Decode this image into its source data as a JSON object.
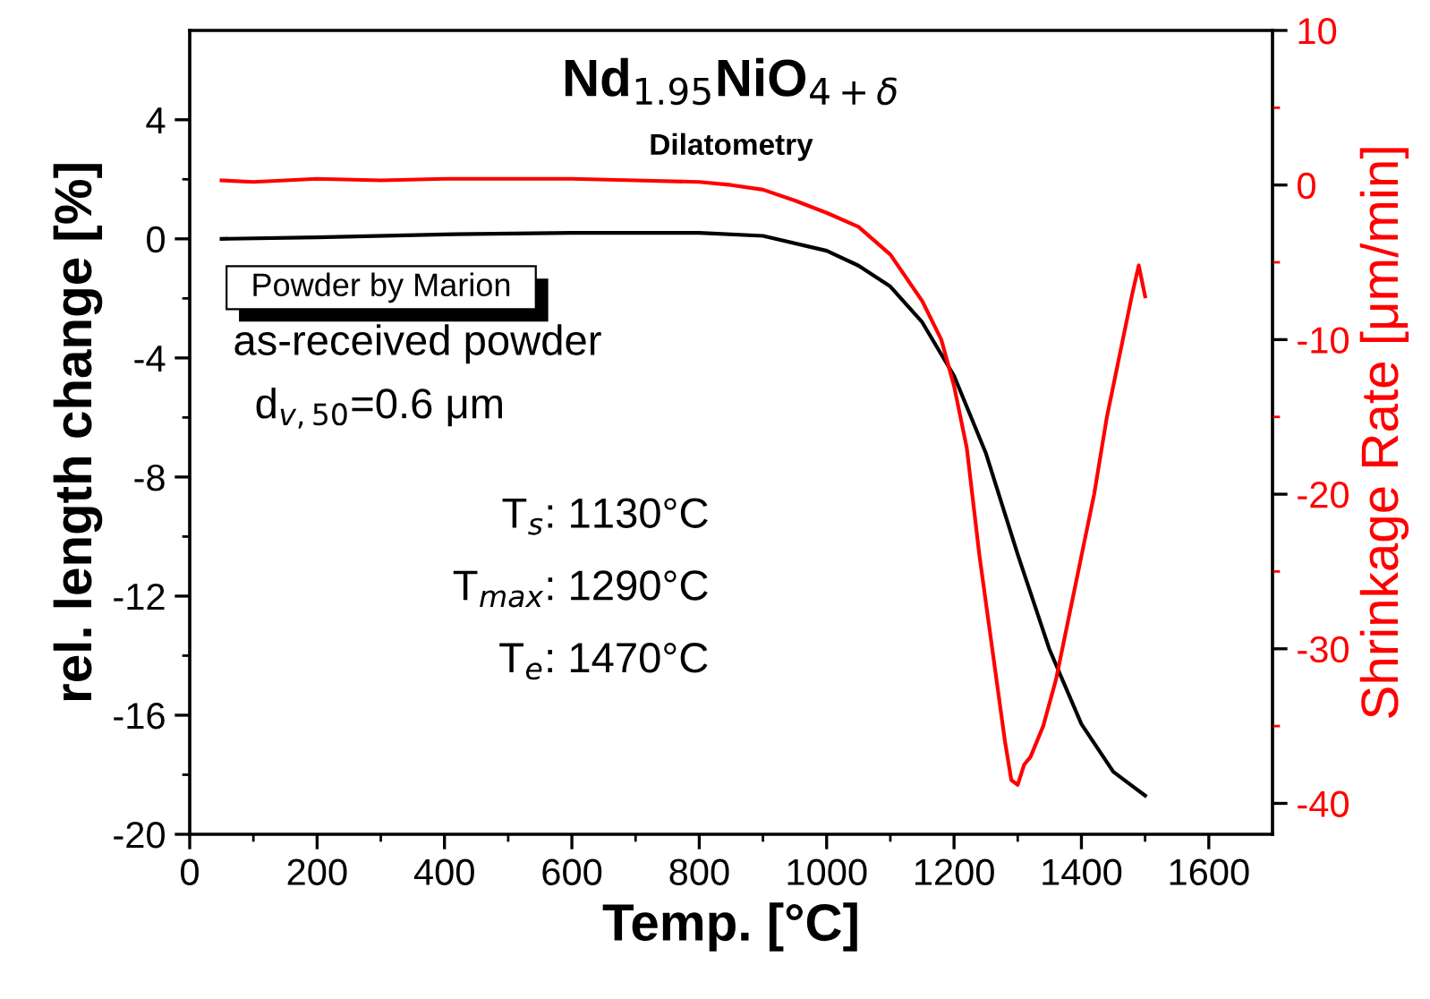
{
  "chart_data": {
    "type": "line",
    "title": "Nd$_{1.95}$NiO$_{4+δ}$",
    "subtitle": "Dilatometry",
    "xlabel": "Temp. [°C]",
    "ylabel": "rel. length change [%]",
    "y2label": "Shrinkage Rate [μm/min]",
    "series": [
      {
        "color": "#000000",
        "x": [
          50,
          200,
          400,
          600,
          800,
          900,
          1000,
          1050,
          1100,
          1150,
          1200,
          1250,
          1300,
          1350,
          1400,
          1450,
          1500
        ],
        "values": [
          0,
          0.05,
          0.15,
          0.2,
          0.2,
          0.1,
          -0.4,
          -0.9,
          -1.6,
          -2.8,
          -4.6,
          -7.2,
          -10.6,
          -13.8,
          -16.3,
          -17.9,
          -18.7
        ]
      },
      {
        "color": "#ff0000",
        "axis": "y2",
        "x": [
          50,
          100,
          200,
          300,
          400,
          500,
          600,
          700,
          800,
          850,
          900,
          950,
          1000,
          1050,
          1100,
          1150,
          1180,
          1200,
          1220,
          1240,
          1260,
          1280,
          1290,
          1300,
          1310,
          1320,
          1340,
          1360,
          1380,
          1400,
          1420,
          1440,
          1460,
          1480,
          1490,
          1500
        ],
        "values": [
          0.3,
          0.2,
          0.4,
          0.3,
          0.4,
          0.4,
          0.4,
          0.3,
          0.2,
          0,
          -0.3,
          -1,
          -1.8,
          -2.7,
          -4.5,
          -7.5,
          -10,
          -13,
          -17,
          -24,
          -30,
          -36,
          -38.5,
          -38.8,
          -37.5,
          -37,
          -35,
          -32,
          -28,
          -24,
          -20,
          -15,
          -11,
          -7,
          -5.2,
          -7.2
        ]
      }
    ],
    "xlim": [
      0,
      1700
    ],
    "xticks": [
      0,
      200,
      400,
      600,
      800,
      1000,
      1200,
      1400,
      1600
    ],
    "ylim": [
      -20,
      7
    ],
    "yticks": [
      -20,
      -16,
      -12,
      -8,
      -4,
      0,
      4
    ],
    "y2lim": [
      -42,
      10
    ],
    "y2ticks": [
      -40,
      -30,
      -20,
      -10,
      0,
      10
    ],
    "annotations": [
      "Powder by Marion",
      "as-received powder",
      "d$_{v,50}$=0.6 μm",
      "T$_{s}$: 1130°C",
      "T$_{max}$: 1290°C",
      "T$_{e}$: 1470°C"
    ],
    "grid": false,
    "legend": false
  }
}
